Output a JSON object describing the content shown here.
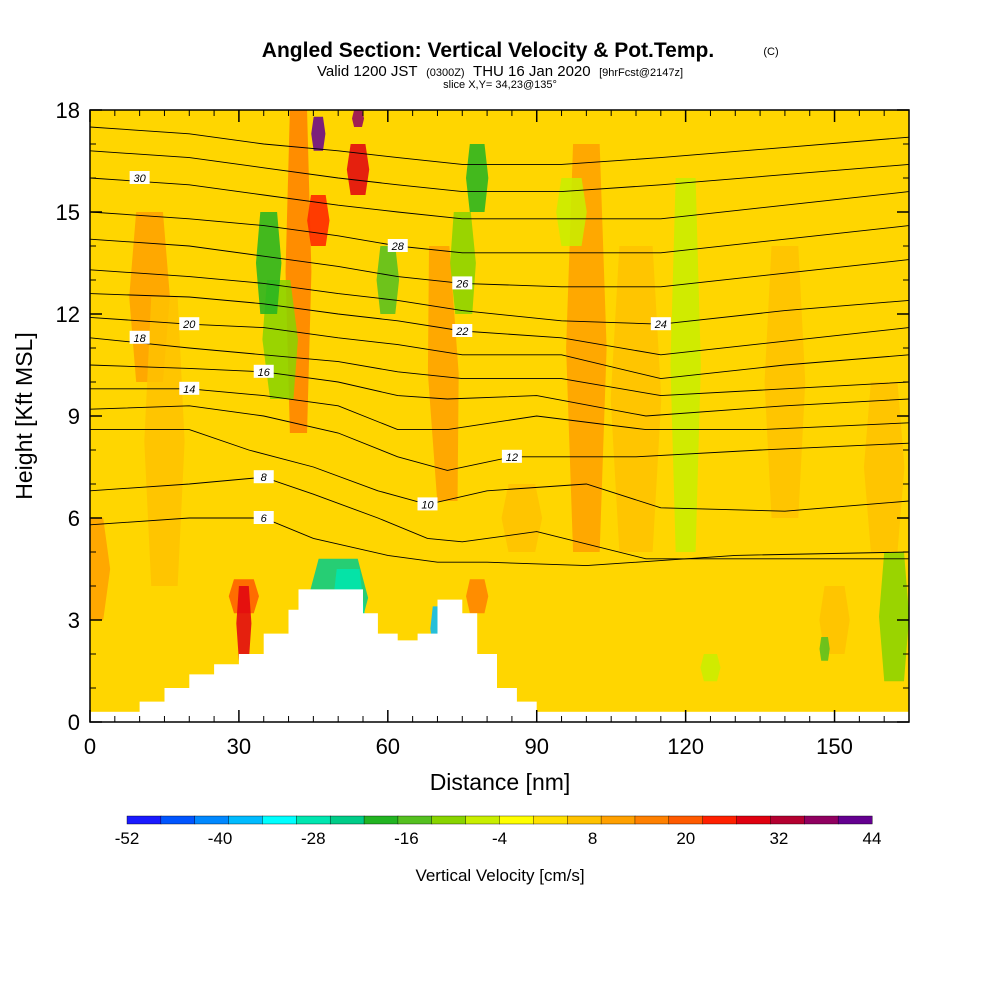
{
  "chart_data": {
    "type": "heatmap",
    "title": "Angled Section: Vertical Velocity & Pot.Temp.",
    "title_unit": "(C)",
    "subtitle_pre": "Valid 1200 JST",
    "subtitle_utc": "(0300Z)",
    "subtitle_date": "THU 16 Jan 2020",
    "subtitle_fcst": "[9hrFcst@2147z]",
    "slice_text": "slice X,Y= 34,23@135°",
    "xlabel": "Distance [nm]",
    "ylabel": "Height [Kft MSL]",
    "xlim": [
      0,
      165
    ],
    "ylim": [
      0,
      18
    ],
    "x_ticks": [
      0,
      30,
      60,
      90,
      120,
      150
    ],
    "y_ticks": [
      0,
      3,
      6,
      9,
      12,
      15,
      18
    ],
    "colorbar": {
      "label": "Vertical Velocity [cm/s]",
      "tick_labels": [
        "-52",
        "-40",
        "-28",
        "-16",
        "-4",
        "8",
        "20",
        "32",
        "44"
      ],
      "range": [
        -52,
        44
      ],
      "colors": [
        "#1a1aff",
        "#0055ff",
        "#0088ff",
        "#00bbff",
        "#00ffff",
        "#00e6b0",
        "#00cc88",
        "#22b422",
        "#55c020",
        "#88d400",
        "#c8ee00",
        "#ffff00",
        "#ffe000",
        "#ffc200",
        "#ffa000",
        "#ff8000",
        "#ff5a00",
        "#ff2000",
        "#e00010",
        "#b40030",
        "#900060",
        "#640090"
      ]
    },
    "terrain_kft": [
      [
        10,
        0.6
      ],
      [
        15,
        1.0
      ],
      [
        20,
        1.4
      ],
      [
        25,
        1.7
      ],
      [
        30,
        2.0
      ],
      [
        35,
        2.6
      ],
      [
        40,
        3.3
      ],
      [
        42,
        3.9
      ],
      [
        50,
        3.9
      ],
      [
        55,
        3.2
      ],
      [
        58,
        2.6
      ],
      [
        62,
        2.4
      ],
      [
        66,
        2.6
      ],
      [
        70,
        3.6
      ],
      [
        75,
        3.2
      ],
      [
        78,
        2.0
      ],
      [
        82,
        1.0
      ],
      [
        86,
        0.6
      ],
      [
        90,
        0.0
      ]
    ],
    "isotherms": [
      {
        "label": "6",
        "pts": [
          [
            0,
            5.8
          ],
          [
            20,
            6.0
          ],
          [
            35,
            6.0
          ],
          [
            45,
            5.4
          ],
          [
            60,
            4.9
          ],
          [
            70,
            4.7
          ],
          [
            80,
            4.7
          ],
          [
            100,
            4.6
          ],
          [
            130,
            4.9
          ],
          [
            165,
            5.0
          ]
        ],
        "at": 2
      },
      {
        "label": "8",
        "pts": [
          [
            0,
            6.8
          ],
          [
            20,
            7.0
          ],
          [
            35,
            7.2
          ],
          [
            45,
            6.7
          ],
          [
            58,
            6.0
          ],
          [
            68,
            5.4
          ],
          [
            75,
            5.3
          ],
          [
            90,
            5.6
          ],
          [
            112,
            4.8
          ],
          [
            140,
            4.8
          ],
          [
            165,
            4.8
          ]
        ],
        "at": 2
      },
      {
        "label": "10",
        "pts": [
          [
            0,
            8.6
          ],
          [
            20,
            8.6
          ],
          [
            32,
            8.0
          ],
          [
            45,
            7.5
          ],
          [
            58,
            6.8
          ],
          [
            68,
            6.4
          ],
          [
            80,
            6.8
          ],
          [
            100,
            7.0
          ],
          [
            115,
            6.3
          ],
          [
            140,
            6.2
          ],
          [
            165,
            6.5
          ]
        ],
        "at": 5
      },
      {
        "label": "12",
        "pts": [
          [
            0,
            9.2
          ],
          [
            20,
            9.3
          ],
          [
            35,
            9.0
          ],
          [
            50,
            8.5
          ],
          [
            62,
            7.8
          ],
          [
            72,
            7.4
          ],
          [
            85,
            7.8
          ],
          [
            110,
            7.8
          ],
          [
            135,
            8.0
          ],
          [
            165,
            8.2
          ]
        ],
        "at": 6
      },
      {
        "label": "14",
        "pts": [
          [
            0,
            9.8
          ],
          [
            20,
            9.8
          ],
          [
            35,
            9.6
          ],
          [
            50,
            9.3
          ],
          [
            62,
            8.6
          ],
          [
            72,
            8.6
          ],
          [
            90,
            9.0
          ],
          [
            112,
            8.6
          ],
          [
            135,
            8.6
          ],
          [
            165,
            8.8
          ]
        ],
        "at": 1
      },
      {
        "label": "16",
        "pts": [
          [
            0,
            10.5
          ],
          [
            20,
            10.4
          ],
          [
            35,
            10.3
          ],
          [
            50,
            10.0
          ],
          [
            62,
            9.6
          ],
          [
            72,
            9.5
          ],
          [
            90,
            9.6
          ],
          [
            112,
            9.0
          ],
          [
            140,
            9.3
          ],
          [
            165,
            9.5
          ]
        ],
        "at": 2
      },
      {
        "label": "18",
        "pts": [
          [
            0,
            11.3
          ],
          [
            20,
            11.0
          ],
          [
            35,
            10.8
          ],
          [
            50,
            10.6
          ],
          [
            62,
            10.3
          ],
          [
            75,
            10.1
          ],
          [
            95,
            10.1
          ],
          [
            115,
            9.6
          ],
          [
            140,
            9.8
          ],
          [
            165,
            10.0
          ]
        ],
        "at": 0
      },
      {
        "label": "20",
        "pts": [
          [
            0,
            11.9
          ],
          [
            20,
            11.7
          ],
          [
            35,
            11.6
          ],
          [
            50,
            11.3
          ],
          [
            62,
            11.1
          ],
          [
            75,
            10.8
          ],
          [
            95,
            10.8
          ],
          [
            115,
            10.1
          ],
          [
            140,
            10.5
          ],
          [
            165,
            10.8
          ]
        ],
        "at": 1
      },
      {
        "label": "22",
        "pts": [
          [
            0,
            12.6
          ],
          [
            20,
            12.5
          ],
          [
            35,
            12.3
          ],
          [
            50,
            12.0
          ],
          [
            62,
            11.8
          ],
          [
            75,
            11.5
          ],
          [
            95,
            11.3
          ],
          [
            115,
            10.8
          ],
          [
            140,
            11.2
          ],
          [
            165,
            11.6
          ]
        ],
        "at": 5
      },
      {
        "label": "24",
        "pts": [
          [
            0,
            13.3
          ],
          [
            20,
            13.1
          ],
          [
            35,
            12.9
          ],
          [
            50,
            12.6
          ],
          [
            62,
            12.4
          ],
          [
            75,
            12.1
          ],
          [
            95,
            11.8
          ],
          [
            115,
            11.7
          ],
          [
            140,
            12.1
          ],
          [
            165,
            12.4
          ]
        ],
        "at": 7
      },
      {
        "label": "26",
        "pts": [
          [
            0,
            14.2
          ],
          [
            20,
            14.0
          ],
          [
            35,
            13.7
          ],
          [
            50,
            13.4
          ],
          [
            62,
            13.1
          ],
          [
            75,
            12.9
          ],
          [
            95,
            12.8
          ],
          [
            115,
            12.8
          ],
          [
            140,
            13.2
          ],
          [
            165,
            13.6
          ]
        ],
        "at": 5
      },
      {
        "label": "28",
        "pts": [
          [
            0,
            15.0
          ],
          [
            20,
            14.8
          ],
          [
            35,
            14.6
          ],
          [
            50,
            14.3
          ],
          [
            62,
            14.0
          ],
          [
            75,
            13.8
          ],
          [
            95,
            13.8
          ],
          [
            115,
            13.8
          ],
          [
            140,
            14.2
          ],
          [
            165,
            14.6
          ]
        ],
        "at": 4
      },
      {
        "label": "30",
        "pts": [
          [
            0,
            16.0
          ],
          [
            20,
            15.8
          ],
          [
            35,
            15.5
          ],
          [
            50,
            15.2
          ],
          [
            62,
            15.0
          ],
          [
            75,
            14.8
          ],
          [
            95,
            14.8
          ],
          [
            115,
            14.8
          ],
          [
            140,
            15.2
          ],
          [
            165,
            15.6
          ]
        ],
        "at": 0
      },
      {
        "label": "",
        "pts": [
          [
            0,
            16.8
          ],
          [
            20,
            16.6
          ],
          [
            35,
            16.3
          ],
          [
            50,
            16.0
          ],
          [
            62,
            15.8
          ],
          [
            75,
            15.6
          ],
          [
            95,
            15.6
          ],
          [
            115,
            15.8
          ],
          [
            140,
            16.1
          ],
          [
            165,
            16.4
          ]
        ],
        "at": -1
      },
      {
        "label": "",
        "pts": [
          [
            0,
            17.5
          ],
          [
            20,
            17.3
          ],
          [
            35,
            17.0
          ],
          [
            50,
            16.8
          ],
          [
            62,
            16.6
          ],
          [
            75,
            16.4
          ],
          [
            95,
            16.4
          ],
          [
            115,
            16.6
          ],
          [
            140,
            16.9
          ],
          [
            165,
            17.2
          ]
        ],
        "at": -1
      }
    ]
  }
}
